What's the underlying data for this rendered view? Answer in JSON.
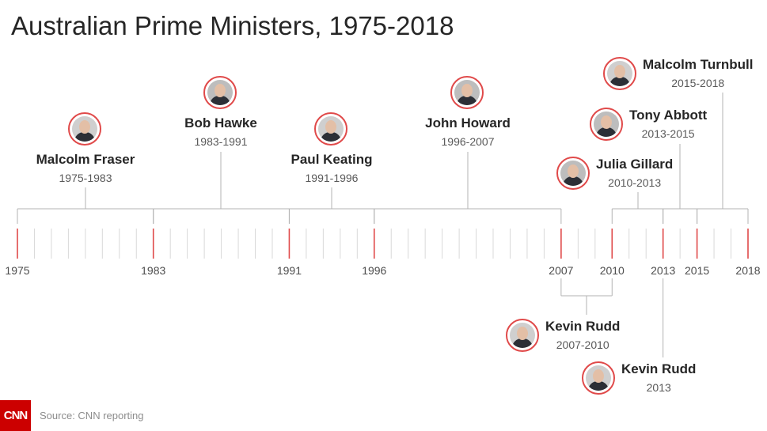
{
  "title": "Australian Prime Ministers, 1975-2018",
  "footer": {
    "logo": "CNN",
    "source": "Source: CNN reporting"
  },
  "axis": {
    "start": 1975,
    "end": 2018,
    "labeled_years": [
      "1975",
      "1983",
      "1991",
      "1996",
      "2007",
      "2010",
      "2013",
      "2015",
      "2018"
    ],
    "accent_color": "#e04a4a",
    "line_color": "#b3b3b3"
  },
  "prime_ministers": [
    {
      "name": "Malcolm Fraser",
      "years": "1975-1983",
      "start": 1975,
      "end": 1983,
      "side": "above",
      "icon": "portrait-icon"
    },
    {
      "name": "Bob Hawke",
      "years": "1983-1991",
      "start": 1983,
      "end": 1991,
      "side": "above",
      "icon": "portrait-icon"
    },
    {
      "name": "Paul Keating",
      "years": "1991-1996",
      "start": 1991,
      "end": 1996,
      "side": "above",
      "icon": "portrait-icon"
    },
    {
      "name": "John Howard",
      "years": "1996-2007",
      "start": 1996,
      "end": 2007,
      "side": "above",
      "icon": "portrait-icon"
    },
    {
      "name": "Kevin Rudd",
      "years": "2007-2010",
      "start": 2007,
      "end": 2010,
      "side": "below",
      "icon": "portrait-icon"
    },
    {
      "name": "Julia Gillard",
      "years": "2010-2013",
      "start": 2010,
      "end": 2013,
      "side": "above",
      "icon": "portrait-icon"
    },
    {
      "name": "Kevin Rudd",
      "years": "2013",
      "start": 2013,
      "end": 2013,
      "side": "below",
      "icon": "portrait-icon"
    },
    {
      "name": "Tony Abbott",
      "years": "2013-2015",
      "start": 2013,
      "end": 2015,
      "side": "above",
      "icon": "portrait-icon"
    },
    {
      "name": "Malcolm Turnbull",
      "years": "2015-2018",
      "start": 2015,
      "end": 2018,
      "side": "above",
      "icon": "portrait-icon"
    }
  ]
}
